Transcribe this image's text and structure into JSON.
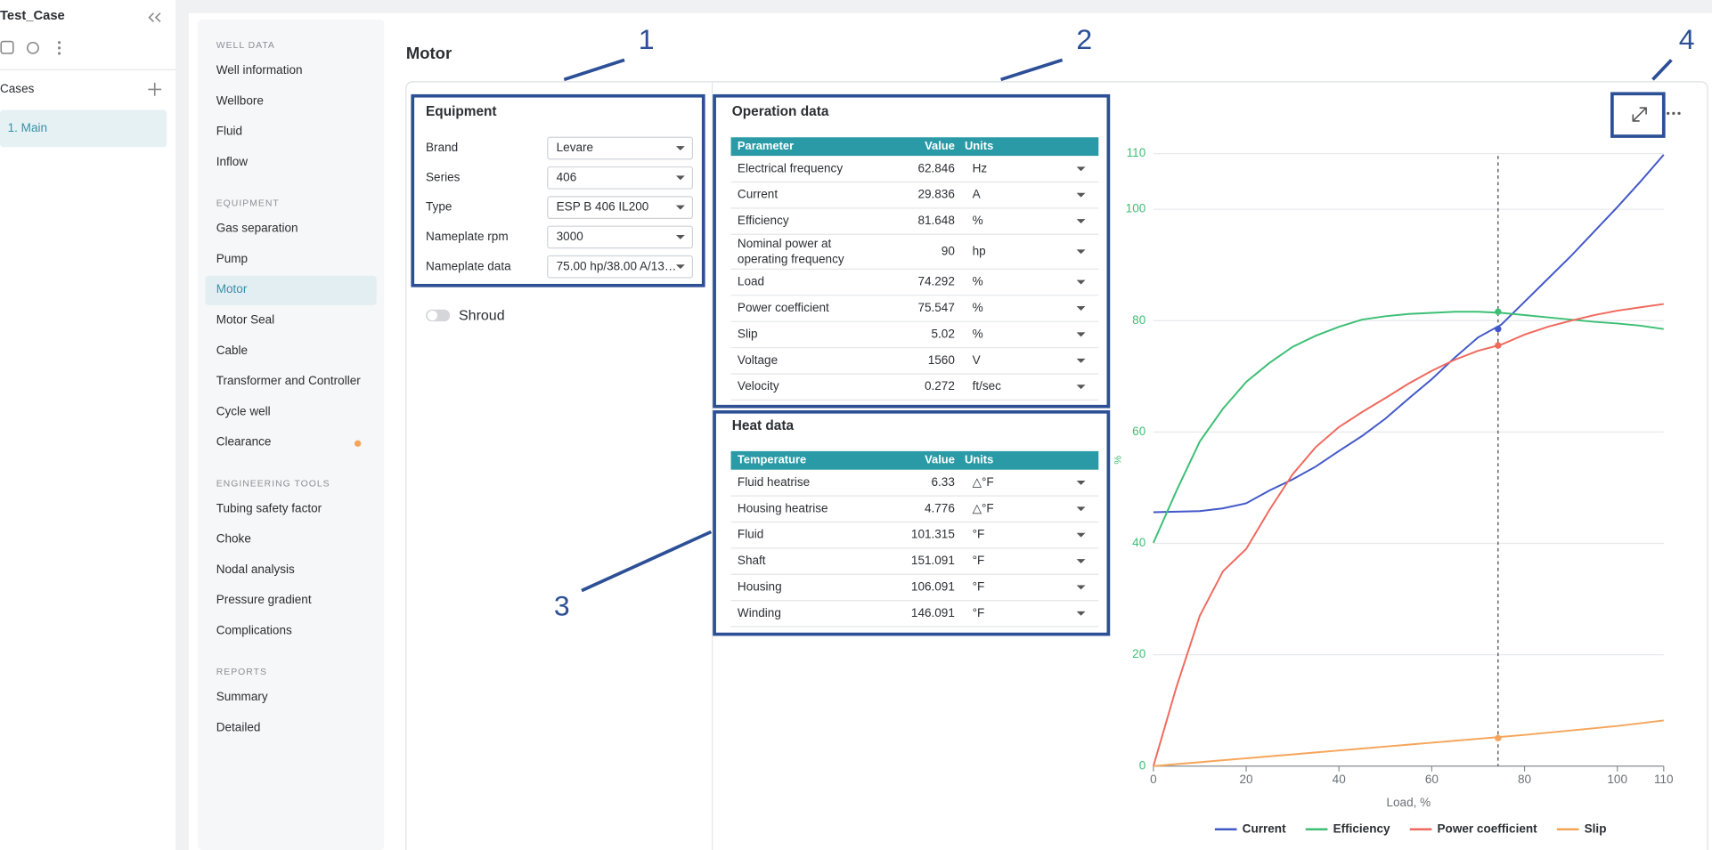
{
  "app": {
    "title": "Test_Case",
    "cases_label": "Cases",
    "cases": [
      "1. Main"
    ]
  },
  "nav": [
    {
      "heading": "WELL DATA",
      "items": [
        "Well information",
        "Wellbore",
        "Fluid",
        "Inflow"
      ]
    },
    {
      "heading": "EQUIPMENT",
      "items": [
        "Gas separation",
        "Pump",
        "Motor",
        "Motor Seal",
        "Cable",
        "Transformer and Controller",
        "Cycle well",
        "Clearance"
      ]
    },
    {
      "heading": "ENGINEERING TOOLS",
      "items": [
        "Tubing safety factor",
        "Choke",
        "Nodal analysis",
        "Pressure gradient",
        "Complications"
      ]
    },
    {
      "heading": "REPORTS",
      "items": [
        "Summary",
        "Detailed"
      ]
    }
  ],
  "page_title": "Motor",
  "equipment": {
    "title": "Equipment",
    "fields": [
      {
        "label": "Brand",
        "value": "Levare"
      },
      {
        "label": "Series",
        "value": "406"
      },
      {
        "label": "Type",
        "value": "ESP B 406 IL200"
      },
      {
        "label": "Nameplate rpm",
        "value": "3000"
      },
      {
        "label": "Nameplate data",
        "value": "75.00 hp/38.00 A/13…"
      }
    ],
    "shroud": "Shroud"
  },
  "operation": {
    "title": "Operation data",
    "columns": [
      "Parameter",
      "Value",
      "Units"
    ],
    "rows": [
      [
        "Electrical frequency",
        62.846,
        "Hz"
      ],
      [
        "Current",
        29.836,
        "A"
      ],
      [
        "Efficiency",
        81.648,
        "%"
      ],
      [
        "Nominal power at operating frequency",
        90,
        "hp"
      ],
      [
        "Load",
        74.292,
        "%"
      ],
      [
        "Power coefficient",
        75.547,
        "%"
      ],
      [
        "Slip",
        5.02,
        "%"
      ],
      [
        "Voltage",
        1560,
        "V"
      ],
      [
        "Velocity",
        0.272,
        "ft/sec"
      ]
    ]
  },
  "heat": {
    "title": "Heat data",
    "columns": [
      "Temperature",
      "Value",
      "Units"
    ],
    "rows": [
      [
        "Fluid heatrise",
        6.33,
        "△°F"
      ],
      [
        "Housing heatrise",
        4.776,
        "△°F"
      ],
      [
        "Fluid",
        101.315,
        "°F"
      ],
      [
        "Shaft",
        151.091,
        "°F"
      ],
      [
        "Housing",
        106.091,
        "°F"
      ],
      [
        "Winding",
        146.091,
        "°F"
      ]
    ]
  },
  "annotations": [
    "1",
    "2",
    "3",
    "4"
  ],
  "chart_data": {
    "type": "line",
    "xlabel": "Load, %",
    "ylabel": "%",
    "x": [
      0,
      5,
      10,
      15,
      20,
      25,
      30,
      35,
      40,
      45,
      50,
      55,
      60,
      65,
      70,
      75,
      80,
      85,
      90,
      95,
      100,
      105,
      110
    ],
    "xlim": [
      0,
      110
    ],
    "xticks": [
      0,
      20,
      40,
      60,
      80,
      100,
      110
    ],
    "ylim": [
      0,
      110
    ],
    "yticks": [
      0,
      20,
      40,
      60,
      80,
      100,
      110
    ],
    "grid": true,
    "cursor_x": 74.292,
    "series": [
      {
        "name": "Current",
        "color": "#4258c8",
        "cursor_value": 78.5,
        "values": [
          45.6,
          45.7,
          45.8,
          46.3,
          47.2,
          49.5,
          51.5,
          53.8,
          56.6,
          59.3,
          62.4,
          66,
          69.5,
          73.4,
          77,
          79.3,
          83.4,
          87.5,
          91.6,
          96,
          100.4,
          105,
          109.8
        ]
      },
      {
        "name": "Efficiency",
        "color": "#3dbf75",
        "cursor_value": 81.6,
        "values": [
          40.1,
          49.5,
          58.3,
          64.2,
          69,
          72.4,
          75.3,
          77.3,
          78.9,
          80.2,
          80.8,
          81.2,
          81.4,
          81.6,
          81.6,
          81.4,
          81,
          80.6,
          80.2,
          79.8,
          79.5,
          79.1,
          78.5
        ]
      },
      {
        "name": "Power coefficient",
        "color": "#f0695e",
        "cursor_value": 75.547,
        "values": [
          0,
          14.3,
          27,
          35,
          39,
          46,
          52.4,
          57.3,
          60.9,
          63.6,
          66.1,
          68.7,
          71,
          73,
          74.6,
          75.7,
          77.5,
          78.9,
          80,
          81,
          81.8,
          82.4,
          83
        ]
      },
      {
        "name": "Slip",
        "color": "#f5a55a",
        "cursor_value": 5.02,
        "values": [
          0,
          0.35,
          0.7,
          1.05,
          1.4,
          1.75,
          2.1,
          2.45,
          2.8,
          3.15,
          3.5,
          3.85,
          4.2,
          4.55,
          4.9,
          5.25,
          5.6,
          6,
          6.4,
          6.8,
          7.2,
          7.7,
          8.2
        ]
      }
    ]
  }
}
